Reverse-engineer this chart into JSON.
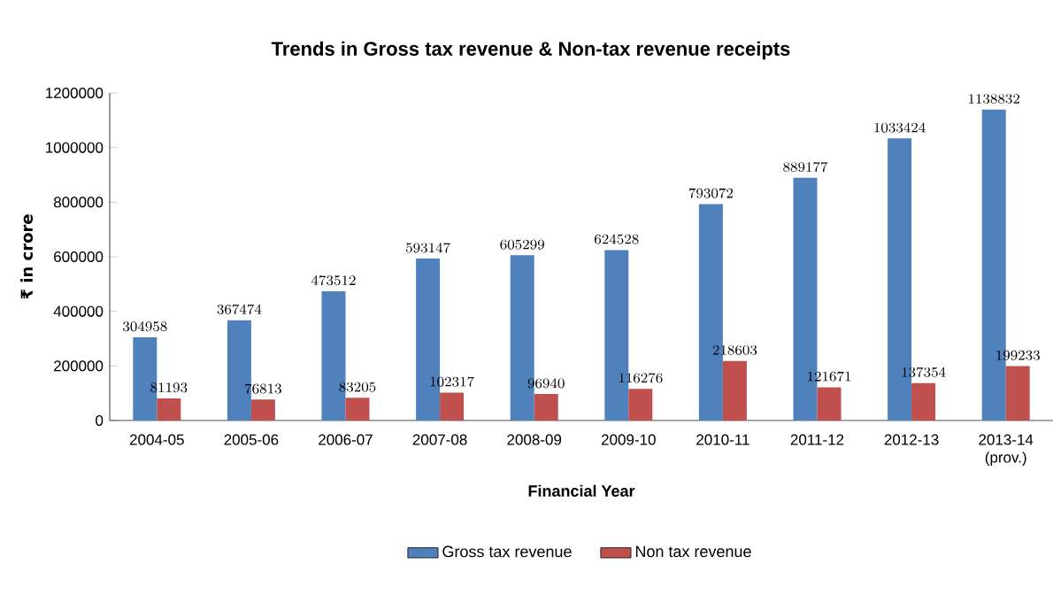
{
  "chart_data": {
    "type": "bar",
    "title": "Trends in Gross tax revenue & Non-tax revenue receipts",
    "xlabel": "Financial Year",
    "ylabel": "₹ in crore",
    "categories": [
      "2004-05",
      "2005-06",
      "2006-07",
      "2007-08",
      "2008-09",
      "2009-10",
      "2010-11",
      "2011-12",
      "2012-13",
      "2013-14 (prov.)"
    ],
    "series": [
      {
        "name": "Gross tax revenue",
        "color": "#4f81bd",
        "values": [
          304958,
          367474,
          473512,
          593147,
          605299,
          624528,
          793072,
          889177,
          1033424,
          1138832
        ]
      },
      {
        "name": "Non tax revenue",
        "color": "#c0504d",
        "values": [
          81193,
          76813,
          83205,
          102317,
          96940,
          116276,
          218603,
          121671,
          137354,
          199233
        ]
      }
    ],
    "ylim": [
      0,
      1200000
    ],
    "yticks": [
      0,
      200000,
      400000,
      600000,
      800000,
      1000000,
      1200000
    ],
    "data_labels": true,
    "legend": "bottom",
    "grid": false
  }
}
